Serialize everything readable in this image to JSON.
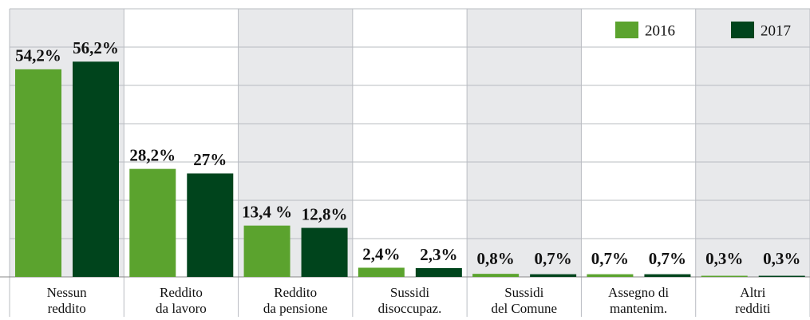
{
  "chart_data": {
    "type": "bar",
    "categories": [
      "Nessun\nreddito",
      "Reddito\nda lavoro",
      "Reddito\nda pensione",
      "Sussidi\ndisoccupaz.",
      "Sussidi\ndel Comune",
      "Assegno di\nmantenim.",
      "Altri\nredditi"
    ],
    "series": [
      {
        "name": "2016",
        "color": "#5ba32e",
        "values": [
          54.2,
          28.2,
          13.4,
          2.4,
          0.8,
          0.7,
          0.3
        ],
        "value_labels": [
          "54,2%",
          "28,2%",
          "13,4 %",
          "2,4%",
          "0,8%",
          "0,7%",
          "0,3%"
        ]
      },
      {
        "name": "2017",
        "color": "#00441c",
        "values": [
          56.2,
          27,
          12.8,
          2.3,
          0.7,
          0.7,
          0.3
        ],
        "value_labels": [
          "56,2%",
          "27%",
          "12,8%",
          "2,3%",
          "0,7%",
          "0,7%",
          "0,3%"
        ]
      }
    ],
    "ylim": [
      0,
      70
    ],
    "yticks": [
      0,
      10,
      20,
      30,
      40,
      50,
      60,
      70
    ],
    "grid": true,
    "legend": "top-right"
  }
}
